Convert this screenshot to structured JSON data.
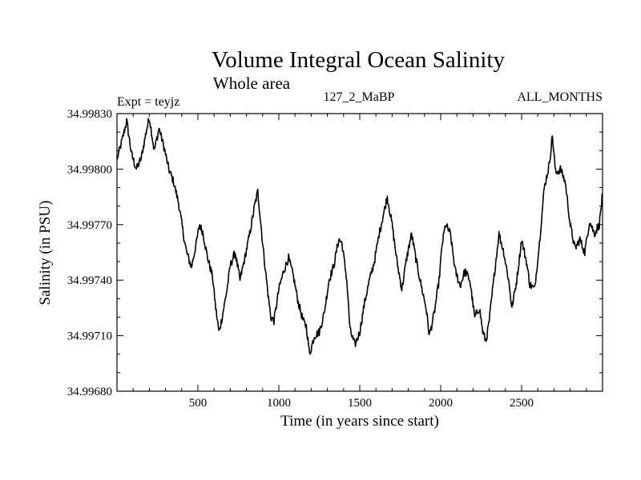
{
  "header": {
    "experiment": "Expt = teyjz",
    "run_id": "127_2_MaBP",
    "months": "ALL_MONTHS"
  },
  "chart_data": {
    "type": "line",
    "title": "Volume Integral Ocean Salinity",
    "subtitle": "Whole area",
    "xlabel": "Time (in years since start)",
    "ylabel": "Salinity (in PSU)",
    "xlim": [
      0,
      3000
    ],
    "ylim": [
      34.9968,
      34.9983
    ],
    "x_ticks": [
      500,
      1000,
      1500,
      2000,
      2500
    ],
    "x_tick_labels": [
      "500",
      "1000",
      "1500",
      "2000",
      "2500"
    ],
    "y_ticks": [
      34.9968,
      34.9971,
      34.9974,
      34.9977,
      34.998,
      34.9983
    ],
    "y_tick_labels": [
      "34.99680",
      "34.99710",
      "34.99740",
      "34.99770",
      "34.99800",
      "34.99830"
    ],
    "line_color": "#000000",
    "series": [
      {
        "name": "Salinity",
        "x": [
          0,
          30,
          60,
          90,
          120,
          150,
          180,
          200,
          230,
          260,
          290,
          320,
          350,
          380,
          410,
          430,
          460,
          490,
          510,
          530,
          560,
          590,
          610,
          630,
          650,
          680,
          700,
          730,
          760,
          790,
          820,
          850,
          870,
          900,
          930,
          950,
          970,
          1000,
          1030,
          1060,
          1090,
          1120,
          1150,
          1170,
          1190,
          1220,
          1250,
          1280,
          1310,
          1340,
          1370,
          1390,
          1420,
          1440,
          1470,
          1500,
          1530,
          1560,
          1590,
          1620,
          1650,
          1670,
          1700,
          1730,
          1760,
          1790,
          1820,
          1850,
          1880,
          1910,
          1930,
          1960,
          1990,
          2010,
          2030,
          2060,
          2090,
          2120,
          2150,
          2180,
          2210,
          2240,
          2260,
          2280,
          2300,
          2330,
          2360,
          2390,
          2420,
          2440,
          2470,
          2500,
          2530,
          2550,
          2580,
          2610,
          2640,
          2670,
          2690,
          2710,
          2740,
          2770,
          2800,
          2830,
          2860,
          2890,
          2920,
          2950,
          2980,
          3000
        ],
        "values": [
          34.99805,
          34.99815,
          34.99826,
          34.99808,
          34.998,
          34.99806,
          34.9982,
          34.99828,
          34.9981,
          34.99822,
          34.99812,
          34.998,
          34.99793,
          34.99782,
          34.99765,
          34.99755,
          34.99747,
          34.9976,
          34.9977,
          34.99766,
          34.99752,
          34.99742,
          34.99725,
          34.99712,
          34.9972,
          34.99735,
          34.99748,
          34.99755,
          34.9974,
          34.99752,
          34.99765,
          34.9978,
          34.99788,
          34.9976,
          34.99735,
          34.9972,
          34.99718,
          34.99735,
          34.99745,
          34.99752,
          34.99742,
          34.99728,
          34.99718,
          34.99715,
          34.997,
          34.9971,
          34.99712,
          34.99722,
          34.9974,
          34.99748,
          34.99762,
          34.9976,
          34.9974,
          34.99713,
          34.99705,
          34.99712,
          34.99728,
          34.9974,
          34.9975,
          34.99765,
          34.99777,
          34.99785,
          34.9977,
          34.9975,
          34.99735,
          34.99752,
          34.99765,
          34.9975,
          34.99737,
          34.99725,
          34.9971,
          34.99722,
          34.9974,
          34.9976,
          34.9977,
          34.99765,
          34.99745,
          34.99737,
          34.99745,
          34.9974,
          34.9972,
          34.99725,
          34.99712,
          34.99707,
          34.99718,
          34.99742,
          34.99765,
          34.99755,
          34.9974,
          34.99725,
          34.9974,
          34.99762,
          34.9975,
          34.99738,
          34.99735,
          34.9976,
          34.9979,
          34.99802,
          34.99818,
          34.99798,
          34.998,
          34.99793,
          34.9977,
          34.99757,
          34.99762,
          34.99755,
          34.99772,
          34.99765,
          34.9977,
          34.99787
        ]
      }
    ]
  }
}
